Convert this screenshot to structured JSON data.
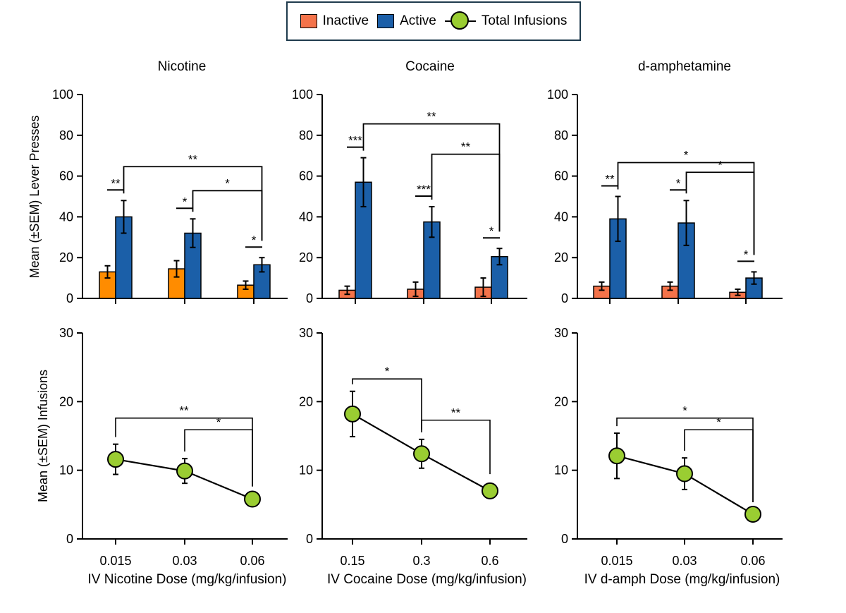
{
  "legend": {
    "inactive": "Inactive",
    "active": "Active",
    "infusions": "Total Infusions"
  },
  "colors": {
    "inactive_nicotine": "#ff8c00",
    "inactive_other": "#f4734a",
    "active": "#1b5fa8",
    "infusions": "#9acd32",
    "legend_border": "#1f3b4d"
  },
  "ylabel_top": "Mean (±SEM) Lever  Presses",
  "ylabel_bottom": "Mean (±SEM) Infusions",
  "chart_data": [
    {
      "type": "bar",
      "title": "Nicotine",
      "ylim": [
        0,
        100
      ],
      "yticks": [
        "0",
        "20",
        "40",
        "60",
        "80",
        "100"
      ],
      "categories": [
        "0.015",
        "0.03",
        "0.06"
      ],
      "series": [
        {
          "name": "Inactive",
          "values": [
            13,
            14.5,
            6.5
          ],
          "sem": [
            3,
            4,
            2
          ]
        },
        {
          "name": "Active",
          "values": [
            40,
            32,
            16.5
          ],
          "sem": [
            8,
            7,
            3.5
          ]
        }
      ],
      "pair_annotations": [
        "**",
        "*",
        "*"
      ],
      "comparison_annotations": [
        {
          "from": 0,
          "to": 2,
          "label": "**"
        },
        {
          "from": 1,
          "to": 2,
          "label": "*"
        }
      ]
    },
    {
      "type": "bar",
      "title": "Cocaine",
      "ylim": [
        0,
        100
      ],
      "yticks": [
        "0",
        "20",
        "40",
        "60",
        "80",
        "100"
      ],
      "categories": [
        "0.15",
        "0.3",
        "0.6"
      ],
      "series": [
        {
          "name": "Inactive",
          "values": [
            4,
            4.5,
            5.5
          ],
          "sem": [
            2,
            3.5,
            4.5
          ]
        },
        {
          "name": "Active",
          "values": [
            57,
            37.5,
            20.5
          ],
          "sem": [
            12,
            7.5,
            4
          ]
        }
      ],
      "pair_annotations": [
        "***",
        "***",
        "*"
      ],
      "comparison_annotations": [
        {
          "from": 0,
          "to": 2,
          "label": "**"
        },
        {
          "from": 1,
          "to": 2,
          "label": "**"
        }
      ]
    },
    {
      "type": "bar",
      "title": "d-amphetamine",
      "ylim": [
        0,
        100
      ],
      "yticks": [
        "0",
        "20",
        "40",
        "60",
        "80",
        "100"
      ],
      "categories": [
        "0.015",
        "0.03",
        "0.06"
      ],
      "series": [
        {
          "name": "Inactive",
          "values": [
            6,
            6,
            3
          ],
          "sem": [
            2,
            2,
            1.5
          ]
        },
        {
          "name": "Active",
          "values": [
            39,
            37,
            10
          ],
          "sem": [
            11,
            11,
            3
          ]
        }
      ],
      "pair_annotations": [
        "**",
        "*",
        "*"
      ],
      "comparison_annotations": [
        {
          "from": 0,
          "to": 2,
          "label": "*"
        },
        {
          "from": 1,
          "to": 2,
          "label": "*"
        }
      ]
    },
    {
      "type": "line",
      "xlabel": "IV Nicotine Dose (mg/kg/infusion)",
      "ylim": [
        0,
        30
      ],
      "yticks": [
        "0",
        "10",
        "20",
        "30"
      ],
      "categories": [
        "0.015",
        "0.03",
        "0.06"
      ],
      "series": [
        {
          "name": "Total Infusions",
          "values": [
            11.6,
            9.9,
            5.8
          ],
          "sem": [
            2.2,
            1.8,
            0.4
          ]
        }
      ],
      "comparison_annotations": [
        {
          "from": 0,
          "to": 2,
          "label": "**"
        },
        {
          "from": 1,
          "to": 2,
          "label": "*"
        }
      ]
    },
    {
      "type": "line",
      "xlabel": "IV Cocaine Dose (mg/kg/infusion)",
      "ylim": [
        0,
        30
      ],
      "yticks": [
        "0",
        "10",
        "20",
        "30"
      ],
      "categories": [
        "0.15",
        "0.3",
        "0.6"
      ],
      "series": [
        {
          "name": "Total Infusions",
          "values": [
            18.2,
            12.4,
            7
          ],
          "sem": [
            3.3,
            2.1,
            1
          ]
        }
      ],
      "comparison_annotations": [
        {
          "from": 0,
          "to": 1,
          "label": "*"
        },
        {
          "from": 1,
          "to": 2,
          "label": "**"
        }
      ]
    },
    {
      "type": "line",
      "xlabel": "IV d-amph Dose (mg/kg/infusion)",
      "ylim": [
        0,
        30
      ],
      "yticks": [
        "0",
        "10",
        "20",
        "30"
      ],
      "categories": [
        "0.015",
        "0.03",
        "0.06"
      ],
      "series": [
        {
          "name": "Total Infusions",
          "values": [
            12.1,
            9.5,
            3.6
          ],
          "sem": [
            3.3,
            2.3,
            0.3
          ]
        }
      ],
      "comparison_annotations": [
        {
          "from": 0,
          "to": 2,
          "label": "*"
        },
        {
          "from": 1,
          "to": 2,
          "label": "*"
        }
      ]
    }
  ]
}
